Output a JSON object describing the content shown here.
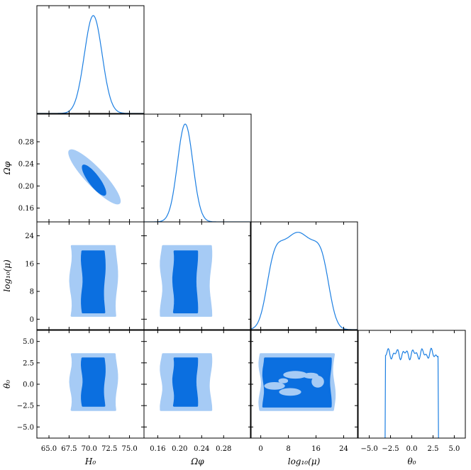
{
  "figure": "corner plot",
  "colors": {
    "outer": "#a6cbf5",
    "inner": "#0b6fe0",
    "line": "#1c7fe2",
    "frame": "#000000"
  },
  "chart_data": {
    "type": "corner",
    "parameters": [
      {
        "id": "H0",
        "label": "H₀",
        "range": [
          63.5,
          76.8
        ],
        "ticks": [
          65.0,
          67.5,
          70.0,
          72.5,
          75.0
        ],
        "tick_labels": [
          "65.0",
          "67.5",
          "70.0",
          "72.5",
          "75.0"
        ]
      },
      {
        "id": "Om",
        "label": "Ωφ",
        "range": [
          0.135,
          0.33
        ],
        "ticks": [
          0.16,
          0.2,
          0.24,
          0.28
        ],
        "tick_labels": [
          "0.16",
          "0.20",
          "0.24",
          "0.28"
        ]
      },
      {
        "id": "mu",
        "label": "log₁₀(μ)",
        "range": [
          -3,
          28
        ],
        "ticks": [
          0,
          8,
          16,
          24
        ],
        "tick_labels": [
          "0",
          "8",
          "16",
          "24"
        ]
      },
      {
        "id": "th",
        "label": "θ₀",
        "range": [
          -6.3,
          6.3
        ],
        "ticks": [
          -5.0,
          -2.5,
          0.0,
          2.5,
          5.0
        ],
        "tick_labels": [
          "−5.0",
          "−2.5",
          "0.0",
          "2.5",
          "5.0"
        ]
      }
    ],
    "marginals": [
      {
        "param": "H0",
        "shape": "gaussian",
        "mean": 70.5,
        "sigma": 1.1
      },
      {
        "param": "Om",
        "shape": "gaussian",
        "mean": 0.21,
        "sigma": 0.014
      },
      {
        "param": "mu",
        "shape": "plateau",
        "low": 2.0,
        "high": 19.5,
        "edge_sigma": 2.0
      },
      {
        "param": "th",
        "shape": "uniform",
        "low": -3.14,
        "high": 3.14
      }
    ],
    "contour_levels": [
      "68%",
      "95%"
    ],
    "pairs": [
      {
        "x": "H0",
        "y": "Om",
        "shape": "correlated-ellipse",
        "inner": {
          "from": [
            69.2,
            0.238
          ],
          "to": [
            72.0,
            0.183
          ]
        },
        "outer": {
          "from": [
            67.5,
            0.265
          ],
          "to": [
            73.8,
            0.168
          ]
        }
      },
      {
        "x": "H0",
        "y": "mu",
        "shape": "band",
        "inner": {
          "x": [
            69.2,
            71.8
          ],
          "y": [
            2.0,
            19.5
          ]
        },
        "outer": {
          "x": [
            67.8,
            73.3
          ],
          "y": [
            1.0,
            21.0
          ]
        }
      },
      {
        "x": "Om",
        "y": "mu",
        "shape": "band",
        "inner": {
          "x": [
            0.19,
            0.23
          ],
          "y": [
            2.0,
            19.5
          ]
        },
        "outer": {
          "x": [
            0.168,
            0.255
          ],
          "y": [
            1.0,
            21.0
          ]
        }
      },
      {
        "x": "H0",
        "y": "th",
        "shape": "band",
        "inner": {
          "x": [
            69.2,
            71.8
          ],
          "y": [
            -2.5,
            3.0
          ]
        },
        "outer": {
          "x": [
            67.8,
            73.3
          ],
          "y": [
            -3.0,
            3.5
          ]
        }
      },
      {
        "x": "Om",
        "y": "th",
        "shape": "band",
        "inner": {
          "x": [
            0.19,
            0.23
          ],
          "y": [
            -2.5,
            3.0
          ]
        },
        "outer": {
          "x": [
            0.168,
            0.255
          ],
          "y": [
            -3.0,
            3.5
          ]
        }
      },
      {
        "x": "mu",
        "y": "th",
        "shape": "box-with-holes",
        "inner": {
          "x": [
            1.0,
            20.0
          ],
          "y": [
            -2.6,
            3.0
          ]
        },
        "outer": {
          "x": [
            0.0,
            21.0
          ],
          "y": [
            -3.0,
            3.5
          ]
        }
      }
    ]
  }
}
